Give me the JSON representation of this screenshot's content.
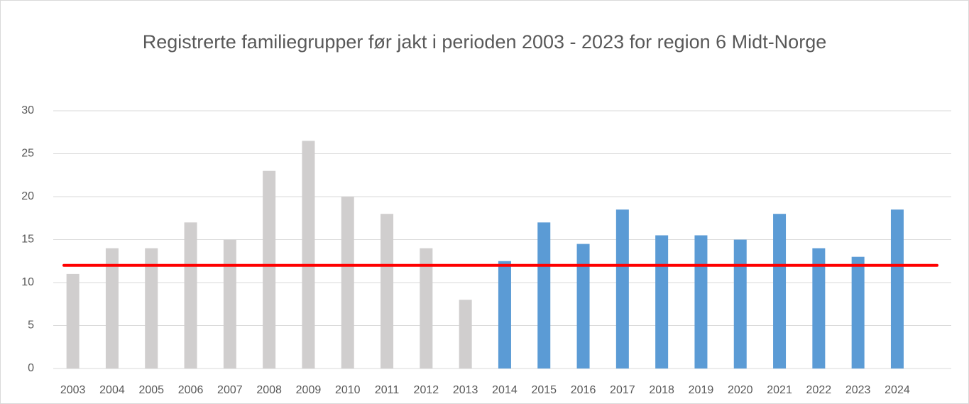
{
  "chart_data": {
    "type": "bar",
    "title": "Registrerte familiegrupper før jakt i perioden 2003 - 2023 for region 6 Midt-Norge",
    "categories": [
      "2003",
      "2004",
      "2005",
      "2006",
      "2007",
      "2008",
      "2009",
      "2010",
      "2011",
      "2012",
      "2013",
      "2014",
      "2015",
      "2016",
      "2017",
      "2018",
      "2019",
      "2020",
      "2021",
      "2022",
      "2023",
      "2024"
    ],
    "values": [
      11,
      14,
      14,
      17,
      15,
      23,
      26.5,
      20,
      18,
      14,
      8,
      12.5,
      17,
      14.5,
      18.5,
      15.5,
      15.5,
      15,
      18,
      14,
      13,
      18.5
    ],
    "colors": [
      "#d0cece",
      "#d0cece",
      "#d0cece",
      "#d0cece",
      "#d0cece",
      "#d0cece",
      "#d0cece",
      "#d0cece",
      "#d0cece",
      "#d0cece",
      "#d0cece",
      "#5b9bd5",
      "#5b9bd5",
      "#5b9bd5",
      "#5b9bd5",
      "#5b9bd5",
      "#5b9bd5",
      "#5b9bd5",
      "#5b9bd5",
      "#5b9bd5",
      "#5b9bd5",
      "#5b9bd5"
    ],
    "reference_line": {
      "value": 12,
      "color": "#ff0000"
    },
    "ylim": [
      0,
      30
    ],
    "yticks": [
      0,
      5,
      10,
      15,
      20,
      25,
      30
    ],
    "grid": true
  }
}
